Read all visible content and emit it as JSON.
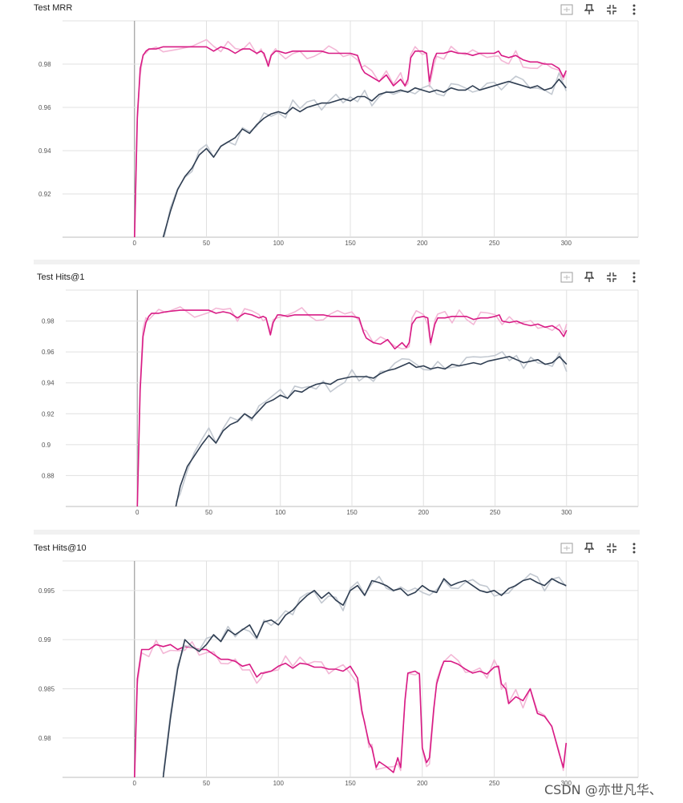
{
  "panels": [
    {
      "title": "Test MRR"
    },
    {
      "title": "Test Hits@1"
    },
    {
      "title": "Test Hits@10"
    }
  ],
  "watermark": "CSDN @亦世凡华、",
  "colors": {
    "pink_series": "#d81b85",
    "pink_raw": "#f3b7d6",
    "dark_series": "#2f3e52",
    "dark_raw": "#c3c9d1",
    "grid": "#e0e0e0",
    "zero_line": "#9e9e9e"
  },
  "icons": [
    "fit-domain-icon",
    "pin-icon",
    "collapse-icon",
    "more-vert-icon"
  ],
  "chart_data": [
    {
      "type": "line",
      "title": "Test MRR",
      "xlim": [
        -50,
        350
      ],
      "ylim": [
        0.9,
        1.0
      ],
      "xticks": [
        0,
        50,
        100,
        150,
        200,
        250,
        300
      ],
      "yticks": [
        0.92,
        0.94,
        0.96,
        0.98
      ],
      "ytick_labels": [
        "0.92",
        "0.94",
        "0.96",
        "0.98"
      ],
      "grid": true,
      "series": [
        {
          "color": "#d81b85",
          "x": [
            0,
            2,
            4,
            6,
            8,
            10,
            15,
            20,
            30,
            40,
            50,
            55,
            60,
            65,
            70,
            75,
            80,
            85,
            88,
            90,
            93,
            95,
            98,
            100,
            105,
            110,
            115,
            120,
            125,
            130,
            135,
            140,
            145,
            150,
            155,
            158,
            160,
            165,
            170,
            175,
            180,
            185,
            188,
            190,
            192,
            195,
            200,
            203,
            205,
            208,
            210,
            215,
            220,
            225,
            230,
            235,
            240,
            245,
            250,
            253,
            255,
            260,
            265,
            270,
            275,
            280,
            285,
            290,
            295,
            298,
            300
          ],
          "y": [
            0.9,
            0.955,
            0.978,
            0.984,
            0.986,
            0.987,
            0.987,
            0.988,
            0.988,
            0.988,
            0.988,
            0.986,
            0.988,
            0.987,
            0.985,
            0.987,
            0.987,
            0.985,
            0.986,
            0.985,
            0.979,
            0.984,
            0.986,
            0.986,
            0.985,
            0.986,
            0.986,
            0.986,
            0.986,
            0.986,
            0.985,
            0.985,
            0.985,
            0.985,
            0.984,
            0.978,
            0.976,
            0.974,
            0.972,
            0.975,
            0.97,
            0.973,
            0.97,
            0.973,
            0.983,
            0.986,
            0.986,
            0.985,
            0.972,
            0.982,
            0.985,
            0.985,
            0.986,
            0.985,
            0.985,
            0.984,
            0.985,
            0.985,
            0.985,
            0.986,
            0.984,
            0.983,
            0.984,
            0.982,
            0.981,
            0.981,
            0.98,
            0.98,
            0.978,
            0.974,
            0.977
          ]
        },
        {
          "color": "#2f3e52",
          "x": [
            20,
            25,
            30,
            35,
            40,
            45,
            50,
            55,
            60,
            65,
            70,
            75,
            80,
            85,
            90,
            95,
            100,
            105,
            110,
            115,
            120,
            125,
            130,
            135,
            140,
            145,
            150,
            155,
            160,
            165,
            170,
            175,
            180,
            185,
            190,
            195,
            200,
            205,
            210,
            215,
            220,
            225,
            230,
            235,
            240,
            245,
            250,
            255,
            260,
            265,
            270,
            275,
            280,
            285,
            290,
            295,
            300
          ],
          "y": [
            0.9,
            0.912,
            0.922,
            0.928,
            0.932,
            0.938,
            0.941,
            0.937,
            0.942,
            0.944,
            0.946,
            0.95,
            0.948,
            0.952,
            0.955,
            0.957,
            0.958,
            0.957,
            0.96,
            0.958,
            0.96,
            0.961,
            0.962,
            0.962,
            0.963,
            0.964,
            0.963,
            0.965,
            0.965,
            0.963,
            0.966,
            0.967,
            0.967,
            0.968,
            0.967,
            0.969,
            0.968,
            0.967,
            0.968,
            0.967,
            0.969,
            0.968,
            0.968,
            0.97,
            0.968,
            0.969,
            0.97,
            0.971,
            0.972,
            0.971,
            0.97,
            0.969,
            0.97,
            0.968,
            0.969,
            0.973,
            0.969
          ]
        }
      ]
    },
    {
      "type": "line",
      "title": "Test Hits@1",
      "xlim": [
        -50,
        350
      ],
      "ylim": [
        0.86,
        1.0
      ],
      "xticks": [
        0,
        50,
        100,
        150,
        200,
        250,
        300
      ],
      "yticks": [
        0.88,
        0.9,
        0.92,
        0.94,
        0.96,
        0.98
      ],
      "ytick_labels": [
        "0.88",
        "0.9",
        "0.92",
        "0.94",
        "0.96",
        "0.98"
      ],
      "grid": true,
      "series": [
        {
          "color": "#d81b85",
          "x": [
            0,
            2,
            4,
            6,
            8,
            10,
            15,
            20,
            30,
            40,
            50,
            55,
            60,
            65,
            70,
            75,
            80,
            85,
            88,
            90,
            93,
            95,
            98,
            100,
            105,
            110,
            115,
            120,
            125,
            130,
            135,
            140,
            145,
            150,
            155,
            158,
            160,
            165,
            170,
            175,
            180,
            185,
            188,
            190,
            192,
            195,
            200,
            203,
            205,
            208,
            210,
            215,
            220,
            225,
            230,
            235,
            240,
            245,
            250,
            253,
            255,
            260,
            265,
            270,
            275,
            280,
            285,
            290,
            295,
            298,
            300
          ],
          "y": [
            0.86,
            0.935,
            0.97,
            0.979,
            0.983,
            0.985,
            0.985,
            0.986,
            0.987,
            0.987,
            0.987,
            0.985,
            0.986,
            0.985,
            0.982,
            0.985,
            0.984,
            0.982,
            0.983,
            0.982,
            0.971,
            0.979,
            0.984,
            0.984,
            0.983,
            0.984,
            0.984,
            0.984,
            0.984,
            0.984,
            0.983,
            0.983,
            0.983,
            0.983,
            0.982,
            0.973,
            0.969,
            0.966,
            0.965,
            0.968,
            0.962,
            0.966,
            0.963,
            0.966,
            0.978,
            0.982,
            0.983,
            0.982,
            0.966,
            0.978,
            0.982,
            0.982,
            0.983,
            0.983,
            0.983,
            0.981,
            0.982,
            0.982,
            0.983,
            0.984,
            0.98,
            0.979,
            0.98,
            0.978,
            0.977,
            0.978,
            0.976,
            0.977,
            0.974,
            0.97,
            0.974
          ]
        },
        {
          "color": "#2f3e52",
          "x": [
            27,
            30,
            35,
            40,
            45,
            50,
            55,
            60,
            65,
            70,
            75,
            80,
            85,
            90,
            95,
            100,
            105,
            110,
            115,
            120,
            125,
            130,
            135,
            140,
            145,
            150,
            155,
            160,
            165,
            170,
            175,
            180,
            185,
            190,
            195,
            200,
            205,
            210,
            215,
            220,
            225,
            230,
            235,
            240,
            245,
            250,
            255,
            260,
            265,
            270,
            275,
            280,
            285,
            290,
            295,
            300
          ],
          "y": [
            0.86,
            0.873,
            0.886,
            0.893,
            0.9,
            0.906,
            0.901,
            0.909,
            0.913,
            0.915,
            0.92,
            0.917,
            0.922,
            0.927,
            0.929,
            0.932,
            0.93,
            0.935,
            0.934,
            0.937,
            0.939,
            0.94,
            0.939,
            0.942,
            0.943,
            0.944,
            0.944,
            0.944,
            0.943,
            0.946,
            0.948,
            0.949,
            0.951,
            0.953,
            0.95,
            0.951,
            0.949,
            0.95,
            0.949,
            0.952,
            0.951,
            0.952,
            0.953,
            0.952,
            0.954,
            0.955,
            0.956,
            0.957,
            0.955,
            0.953,
            0.954,
            0.955,
            0.952,
            0.953,
            0.957,
            0.952
          ]
        }
      ]
    },
    {
      "type": "line",
      "title": "Test Hits@10",
      "xlim": [
        -50,
        350
      ],
      "ylim": [
        0.976,
        0.998
      ],
      "xticks": [
        0,
        50,
        100,
        150,
        200,
        250,
        300
      ],
      "yticks": [
        0.98,
        0.985,
        0.99,
        0.995
      ],
      "ytick_labels": [
        "0.98",
        "0.985",
        "0.99",
        "0.995"
      ],
      "grid": true,
      "series": [
        {
          "color": "#d81b85",
          "x": [
            0,
            2,
            5,
            10,
            15,
            20,
            25,
            30,
            35,
            40,
            45,
            50,
            55,
            60,
            65,
            70,
            75,
            80,
            85,
            88,
            90,
            95,
            100,
            105,
            110,
            115,
            120,
            125,
            130,
            135,
            140,
            145,
            150,
            155,
            158,
            160,
            163,
            165,
            168,
            170,
            175,
            180,
            183,
            185,
            188,
            190,
            195,
            198,
            200,
            203,
            205,
            208,
            210,
            213,
            215,
            220,
            225,
            230,
            235,
            240,
            245,
            250,
            253,
            255,
            258,
            260,
            265,
            270,
            275,
            280,
            285,
            290,
            295,
            298,
            300
          ],
          "y": [
            0.976,
            0.986,
            0.989,
            0.989,
            0.9895,
            0.9893,
            0.9895,
            0.989,
            0.9893,
            0.9892,
            0.989,
            0.989,
            0.9885,
            0.988,
            0.988,
            0.9878,
            0.9873,
            0.9875,
            0.9862,
            0.9866,
            0.9866,
            0.9868,
            0.9873,
            0.9876,
            0.9871,
            0.9876,
            0.9875,
            0.9872,
            0.9872,
            0.987,
            0.987,
            0.9868,
            0.9873,
            0.9861,
            0.9828,
            0.9815,
            0.9795,
            0.979,
            0.977,
            0.9776,
            0.9771,
            0.9765,
            0.978,
            0.977,
            0.9838,
            0.9866,
            0.9868,
            0.9865,
            0.979,
            0.9775,
            0.978,
            0.983,
            0.9855,
            0.987,
            0.9878,
            0.9878,
            0.9875,
            0.987,
            0.9866,
            0.9868,
            0.9865,
            0.9872,
            0.9873,
            0.9855,
            0.985,
            0.9835,
            0.9842,
            0.9838,
            0.985,
            0.9825,
            0.9822,
            0.9812,
            0.9785,
            0.977,
            0.9795
          ]
        },
        {
          "color": "#2f3e52",
          "x": [
            20,
            25,
            30,
            35,
            40,
            45,
            50,
            55,
            60,
            65,
            70,
            75,
            80,
            85,
            90,
            95,
            100,
            105,
            110,
            115,
            120,
            125,
            130,
            135,
            140,
            145,
            150,
            155,
            160,
            165,
            170,
            175,
            180,
            185,
            190,
            195,
            200,
            205,
            210,
            215,
            220,
            225,
            230,
            235,
            240,
            245,
            250,
            255,
            260,
            265,
            270,
            275,
            280,
            285,
            290,
            295,
            300
          ],
          "y": [
            0.976,
            0.982,
            0.987,
            0.99,
            0.9893,
            0.9888,
            0.9895,
            0.9905,
            0.9898,
            0.991,
            0.9905,
            0.991,
            0.9915,
            0.9902,
            0.9918,
            0.992,
            0.9915,
            0.9925,
            0.993,
            0.9938,
            0.9945,
            0.995,
            0.9942,
            0.9948,
            0.994,
            0.9935,
            0.995,
            0.9955,
            0.9945,
            0.996,
            0.9958,
            0.9955,
            0.995,
            0.9952,
            0.9945,
            0.9948,
            0.9955,
            0.995,
            0.9948,
            0.9962,
            0.9955,
            0.9958,
            0.996,
            0.9955,
            0.995,
            0.9948,
            0.995,
            0.9945,
            0.9952,
            0.9955,
            0.996,
            0.9962,
            0.9958,
            0.9955,
            0.9962,
            0.9958,
            0.9955
          ]
        }
      ]
    }
  ]
}
